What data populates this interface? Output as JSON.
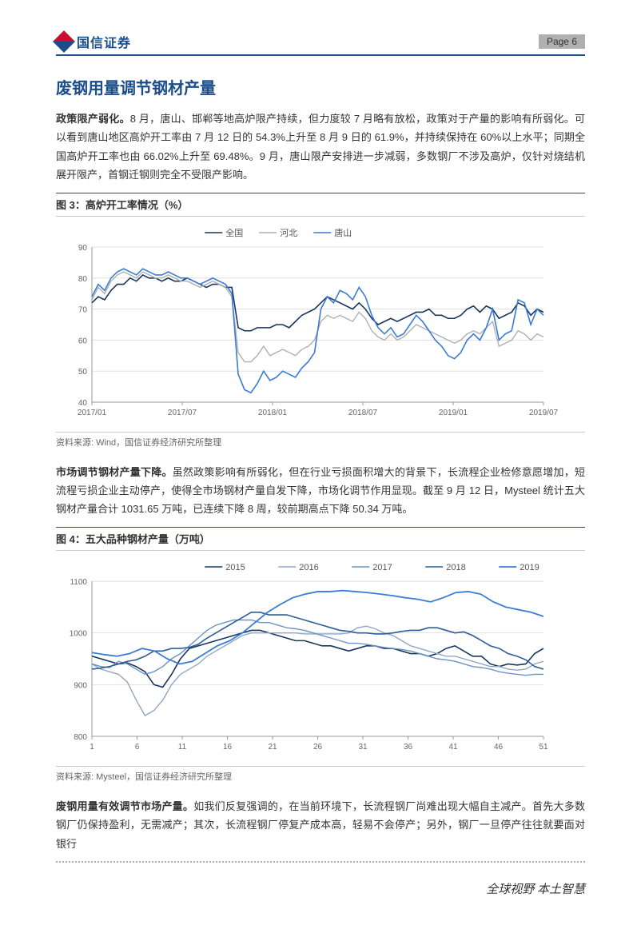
{
  "header": {
    "brand": "国信证券",
    "page_label": "Page  6"
  },
  "section_title": "废钢用量调节钢材产量",
  "para1": {
    "lead": "政策限产弱化。",
    "text": "8 月，唐山、邯郸等地高炉限产持续，但力度较 7 月略有放松，政策对于产量的影响有所弱化。可以看到唐山地区高炉开工率由 7 月 12 日的 54.3%上升至 8 月 9 日的 61.9%，并持续保持在 60%以上水平；同期全国高炉开工率也由 66.02%上升至 69.48%。9 月，唐山限产安排进一步减弱，多数钢厂不涉及高炉，仅针对烧结机展开限产，首钢迁钢则完全不受限产影响。"
  },
  "fig3": {
    "caption": "图 3：高炉开工率情况（%）",
    "source": "资料来源: Wind，国信证券经济研究所整理",
    "type": "line",
    "ylim": [
      40,
      90
    ],
    "ytick_step": 10,
    "xticks": [
      "2017/01",
      "2017/07",
      "2018/01",
      "2018/07",
      "2019/01",
      "2019/07"
    ],
    "grid_color": "#e0e0e0",
    "background_color": "#ffffff",
    "label_fontsize": 10,
    "series": [
      {
        "name": "全国",
        "color": "#17365d",
        "width": 1.6,
        "y": [
          72,
          74,
          73,
          76,
          78,
          78,
          80,
          79,
          81,
          80,
          80,
          79,
          80,
          79,
          79,
          80,
          79,
          78,
          77,
          78,
          78,
          77,
          77,
          64,
          63,
          63,
          64,
          64,
          64,
          65,
          65,
          64,
          66,
          68,
          69,
          70,
          72,
          74,
          73,
          72,
          71,
          70,
          72,
          70,
          67,
          65,
          66,
          67,
          66,
          67,
          68,
          69,
          69,
          70,
          68,
          68,
          67,
          67,
          68,
          70,
          71,
          69,
          71,
          70,
          67,
          68,
          69,
          72,
          71,
          68,
          70,
          69
        ]
      },
      {
        "name": "河北",
        "color": "#b0b0b0",
        "width": 1.4,
        "y": [
          73,
          77,
          75,
          79,
          81,
          82,
          81,
          80,
          82,
          81,
          80,
          80,
          81,
          80,
          79,
          79,
          78,
          77,
          78,
          79,
          78,
          77,
          74,
          56,
          53,
          53,
          55,
          58,
          55,
          56,
          57,
          56,
          55,
          57,
          58,
          60,
          66,
          68,
          67,
          68,
          67,
          66,
          69,
          67,
          63,
          61,
          60,
          62,
          60,
          61,
          63,
          65,
          64,
          63,
          62,
          61,
          60,
          59,
          60,
          62,
          63,
          62,
          64,
          66,
          58,
          59,
          60,
          63,
          62,
          60,
          62,
          61
        ]
      },
      {
        "name": "唐山",
        "color": "#3a7bd5",
        "width": 1.6,
        "y": [
          74,
          78,
          76,
          80,
          82,
          83,
          82,
          81,
          83,
          82,
          81,
          81,
          82,
          81,
          80,
          80,
          79,
          78,
          79,
          80,
          79,
          78,
          75,
          49,
          44,
          43,
          46,
          50,
          47,
          48,
          50,
          49,
          48,
          51,
          53,
          56,
          70,
          74,
          72,
          76,
          75,
          73,
          77,
          74,
          68,
          64,
          62,
          64,
          61,
          62,
          65,
          68,
          66,
          63,
          60,
          58,
          55,
          54,
          56,
          60,
          62,
          60,
          64,
          70,
          60,
          62,
          63,
          73,
          72,
          65,
          70,
          68
        ]
      }
    ]
  },
  "para2": {
    "lead": "市场调节钢材产量下降。",
    "text": "虽然政策影响有所弱化，但在行业亏损面积增大的背景下，长流程企业检修意愿增加，短流程亏损企业主动停产，使得全市场钢材产量自发下降，市场化调节作用显现。截至 9 月 12 日，Mysteel 统计五大钢材产量合计 1031.65 万吨，已连续下降 8 周，较前期高点下降 50.34 万吨。"
  },
  "fig4": {
    "caption": "图 4：五大品种钢材产量（万吨）",
    "source": "资料来源: Mysteel，国信证券经济研究所整理",
    "type": "line",
    "ylim": [
      800,
      1100
    ],
    "ytick_step": 100,
    "xticks": [
      "1",
      "6",
      "11",
      "16",
      "21",
      "26",
      "31",
      "36",
      "41",
      "46",
      "51"
    ],
    "grid_color": "#e0e0e0",
    "background_color": "#ffffff",
    "label_fontsize": 10,
    "series": [
      {
        "name": "2015",
        "color": "#17365d",
        "width": 1.6,
        "y": [
          955,
          950,
          945,
          940,
          942,
          935,
          925,
          900,
          895,
          920,
          950,
          970,
          975,
          980,
          985,
          990,
          995,
          1000,
          1005,
          1005,
          1000,
          995,
          990,
          985,
          985,
          980,
          975,
          975,
          970,
          965,
          970,
          975,
          975,
          970,
          970,
          965,
          960,
          960,
          955,
          960,
          970,
          975,
          965,
          955,
          955,
          940,
          935,
          940,
          938,
          940,
          960,
          970
        ]
      },
      {
        "name": "2016",
        "color": "#8fa6c7",
        "width": 1.4,
        "y": [
          940,
          930,
          925,
          920,
          905,
          870,
          840,
          850,
          870,
          900,
          920,
          930,
          940,
          955,
          965,
          975,
          985,
          995,
          1000,
          1000,
          1000,
          1000,
          1000,
          1000,
          998,
          998,
          998,
          998,
          998,
          1000,
          1010,
          1013,
          1008,
          1000,
          995,
          985,
          975,
          970,
          965,
          960,
          955,
          955,
          950,
          945,
          940,
          935,
          935,
          930,
          928,
          930,
          940,
          945
        ]
      },
      {
        "name": "2017",
        "color": "#6b93c8",
        "width": 1.4,
        "y": [
          940,
          935,
          933,
          945,
          940,
          930,
          920,
          925,
          935,
          950,
          960,
          975,
          990,
          1005,
          1015,
          1020,
          1025,
          1025,
          1025,
          1020,
          1020,
          1015,
          1010,
          1008,
          1005,
          1000,
          995,
          990,
          985,
          980,
          980,
          978,
          975,
          972,
          970,
          968,
          965,
          960,
          955,
          950,
          948,
          945,
          940,
          935,
          933,
          930,
          925,
          922,
          920,
          918,
          920,
          920
        ]
      },
      {
        "name": "2018",
        "color": "#2e5c99",
        "width": 1.6,
        "y": [
          930,
          932,
          935,
          940,
          945,
          948,
          955,
          965,
          965,
          970,
          970,
          972,
          978,
          990,
          1000,
          1010,
          1020,
          1030,
          1040,
          1040,
          1035,
          1035,
          1035,
          1030,
          1025,
          1020,
          1015,
          1010,
          1005,
          1003,
          1000,
          1000,
          998,
          998,
          1000,
          1003,
          1005,
          1005,
          1010,
          1010,
          1005,
          1000,
          1002,
          995,
          985,
          975,
          970,
          960,
          955,
          948,
          935,
          930
        ]
      },
      {
        "name": "2019",
        "color": "#3a7bd5",
        "width": 1.8,
        "y": [
          962,
          958,
          955,
          960,
          970,
          965,
          950,
          940,
          945,
          960,
          975,
          985,
          1000,
          1020,
          1040,
          1055,
          1068,
          1075,
          1080,
          1080,
          1082,
          1080,
          1078,
          1075,
          1072,
          1068,
          1065,
          1060,
          1068,
          1078,
          1080,
          1075,
          1060,
          1050,
          1045,
          1040,
          1032
        ]
      }
    ]
  },
  "para3": {
    "lead": "废钢用量有效调节市场产量。",
    "text": "如我们反复强调的，在当前环境下，长流程钢厂尚难出现大幅自主减产。首先大多数钢厂仍保持盈利，无需减产；其次，长流程钢厂停复产成本高，轻易不会停产；另外，钢厂一旦停产往往就要面对银行"
  },
  "footer": "全球视野  本土智慧"
}
